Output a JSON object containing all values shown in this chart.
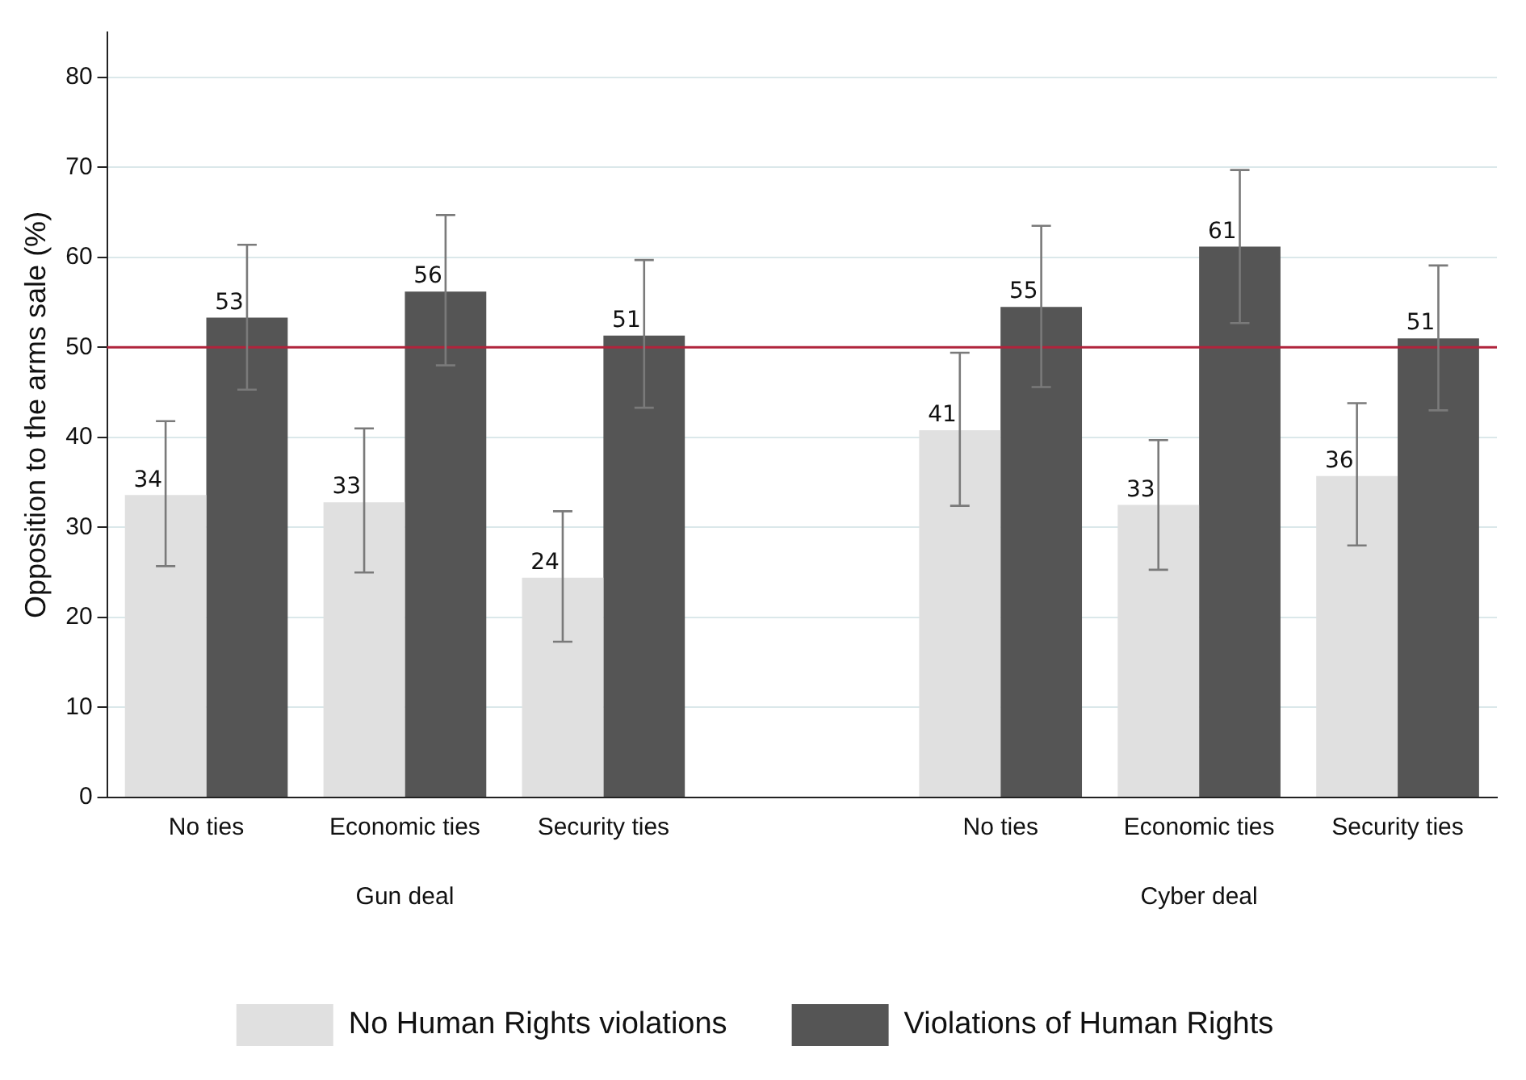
{
  "chart_data": {
    "type": "bar",
    "ylabel": "Opposition to the arms sale (%)",
    "categories": [
      "No ties",
      "Economic ties",
      "Security ties",
      null,
      "No ties",
      "Economic ties",
      "Security ties"
    ],
    "series": [
      {
        "name": "No Human Rights violations",
        "color": "#e0e0e0",
        "values": [
          33.6,
          32.8,
          24.4,
          null,
          40.8,
          32.5,
          35.7
        ],
        "errors": [
          [
            25.7,
            41.8
          ],
          [
            25,
            41
          ],
          [
            17.3,
            31.8
          ],
          null,
          [
            32.4,
            49.4
          ],
          [
            25.3,
            39.7
          ],
          [
            28,
            43.8
          ]
        ],
        "value_labels": [
          "34",
          "33",
          "24",
          null,
          "41",
          "33",
          "36"
        ]
      },
      {
        "name": "Violations of Human Rights",
        "color": "#555555",
        "values": [
          53.3,
          56.2,
          51.3,
          null,
          54.5,
          61.2,
          51
        ],
        "errors": [
          [
            45.3,
            61.4
          ],
          [
            48,
            64.7
          ],
          [
            43.3,
            59.7
          ],
          null,
          [
            45.6,
            63.5
          ],
          [
            52.7,
            69.7
          ],
          [
            43,
            59.1
          ]
        ],
        "value_labels": [
          "53",
          "56",
          "51",
          null,
          "55",
          "61",
          "51"
        ]
      }
    ],
    "annotations": [
      "Gun deal",
      "Cyber deal"
    ],
    "ylim": [
      0,
      85
    ],
    "yticks": [
      0,
      10,
      20,
      30,
      40,
      50,
      60,
      70,
      80
    ],
    "grid": "y",
    "ref_lines": [
      {
        "axis": "y",
        "value": 50,
        "color": "#b0243c"
      }
    ],
    "legend": "bottom"
  }
}
